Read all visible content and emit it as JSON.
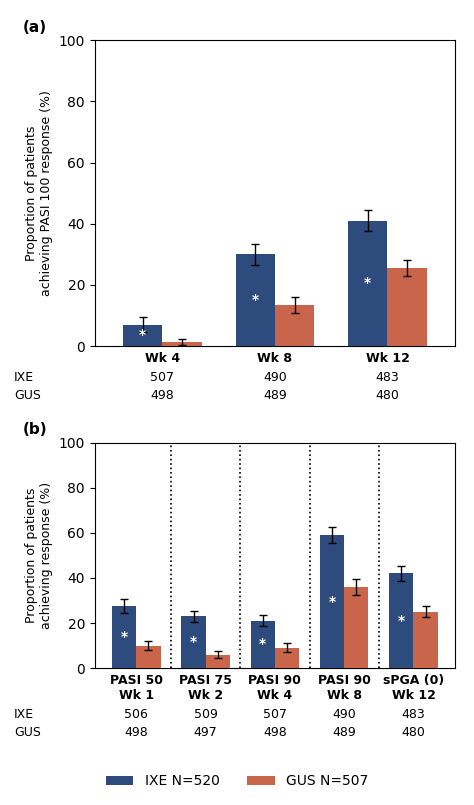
{
  "chart_data": [
    {
      "type": "bar",
      "title": "(a)",
      "ylabel": "Proportion of patients\nachieving PASI 100 response (%)",
      "categories": [
        "Wk 4",
        "Wk 8",
        "Wk 12"
      ],
      "series": [
        {
          "name": "IXE",
          "color": "#2E4B7E",
          "values": [
            7.0,
            30.0,
            41.0
          ],
          "errors": [
            2.5,
            3.5,
            3.5
          ],
          "n": [
            507,
            490,
            483
          ],
          "bar_text": "*"
        },
        {
          "name": "GUS",
          "color": "#C9654A",
          "values": [
            1.5,
            13.5,
            25.5
          ],
          "errors": [
            1.0,
            2.5,
            2.5
          ],
          "n": [
            498,
            489,
            480
          ]
        }
      ],
      "ylim": [
        0,
        100
      ],
      "yticks": [
        0,
        20,
        40,
        60,
        80,
        100
      ]
    },
    {
      "type": "bar",
      "title": "(b)",
      "ylabel": "Proportion of patients\nachieving response (%)",
      "categories": [
        "PASI 50\nWk 1",
        "PASI 75\nWk 2",
        "PASI 90\nWk 4",
        "PASI 90\nWk 8",
        "sPGA (0)\nWk 12"
      ],
      "series": [
        {
          "name": "IXE",
          "label": "IXE N=520",
          "color": "#2E4B7E",
          "values": [
            27.5,
            23.0,
            21.0,
            59.0,
            42.0
          ],
          "errors": [
            3.0,
            2.5,
            2.5,
            3.5,
            3.5
          ],
          "n": [
            506,
            509,
            507,
            490,
            483
          ],
          "bar_text": "*"
        },
        {
          "name": "GUS",
          "label": "GUS N=507",
          "color": "#C9654A",
          "values": [
            10.0,
            6.0,
            9.0,
            36.0,
            25.0
          ],
          "errors": [
            2.0,
            1.5,
            2.0,
            3.5,
            2.5
          ],
          "n": [
            498,
            497,
            498,
            489,
            480
          ]
        }
      ],
      "ylim": [
        0,
        100
      ],
      "yticks": [
        0,
        20,
        40,
        60,
        80,
        100
      ],
      "dividers": true,
      "legend": "lower center"
    }
  ]
}
